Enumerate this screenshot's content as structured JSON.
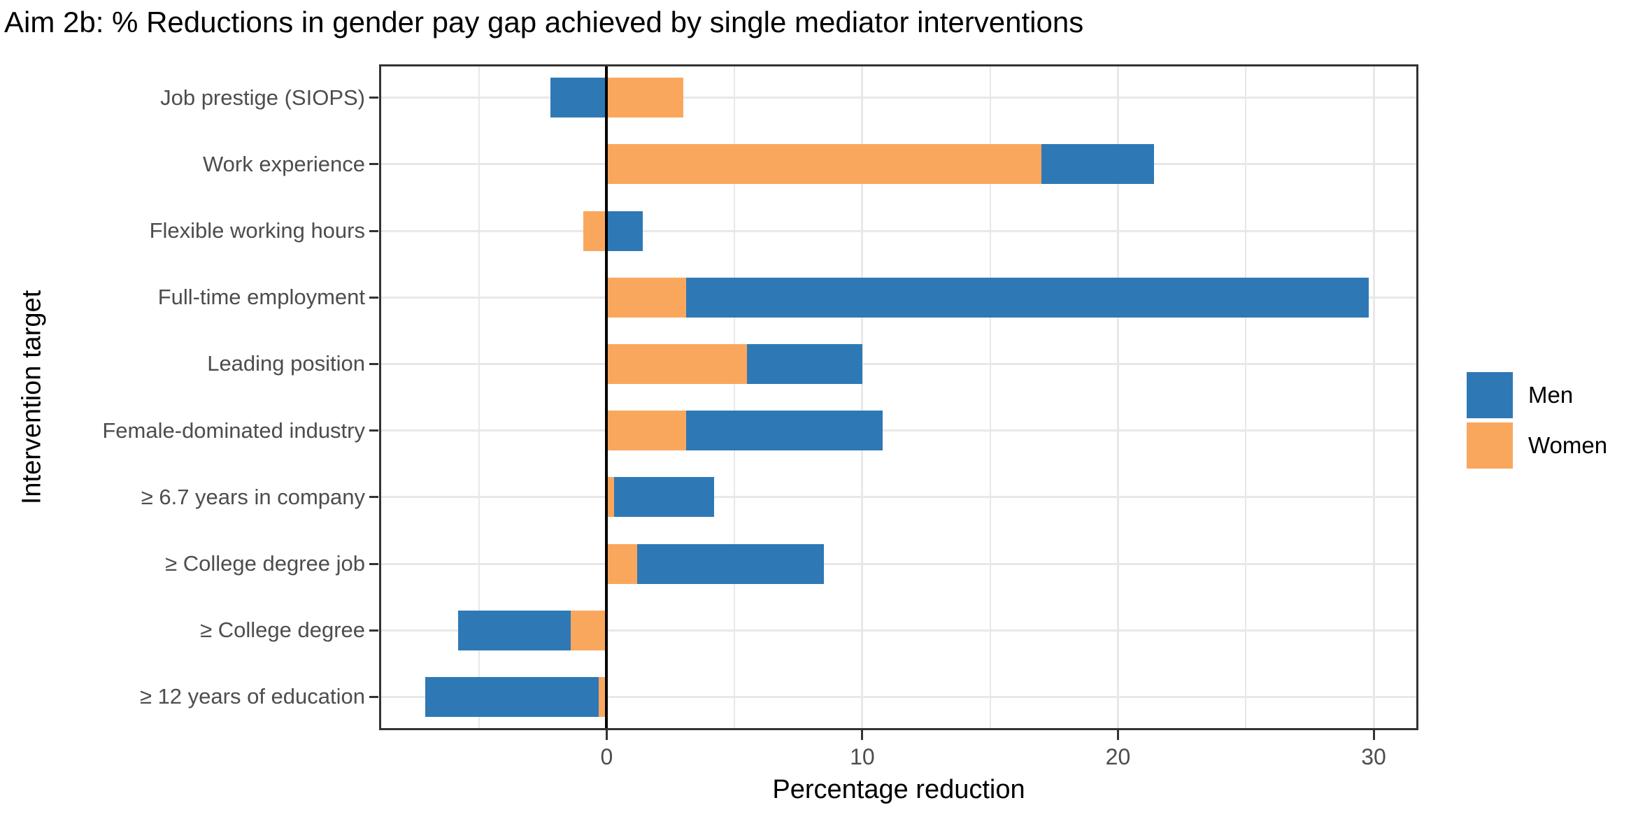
{
  "chart_data": {
    "type": "bar",
    "orientation": "horizontal",
    "stacked": true,
    "title": "Aim 2b: % Reductions in gender pay gap achieved by single mediator interventions",
    "xlabel": "Percentage reduction",
    "ylabel": "Intervention target",
    "categories": [
      "Job prestige (SIOPS)",
      "Work experience",
      "Flexible working hours",
      "Full-time employment",
      "Leading position",
      "Female-dominated industry",
      "≥ 6.7 years in company",
      "≥ College degree job",
      "≥ College degree",
      "≥ 12 years of education"
    ],
    "series": [
      {
        "name": "Men",
        "color": "#2E79B5",
        "values": [
          -2.2,
          4.4,
          1.4,
          26.7,
          4.5,
          7.7,
          3.9,
          7.3,
          -4.4,
          -6.8
        ]
      },
      {
        "name": "Women",
        "color": "#FAA75E",
        "values": [
          3.0,
          17.0,
          -0.9,
          3.1,
          5.5,
          3.1,
          0.3,
          1.2,
          -1.4,
          -0.3
        ]
      }
    ],
    "stack_order": [
      "Women",
      "Men"
    ],
    "x_ticks": [
      0,
      10,
      20,
      30
    ],
    "x_minor_ticks": [
      -5,
      5,
      15,
      25
    ],
    "xlim": [
      -8.9,
      31.75
    ],
    "zero_line": true,
    "grid": true,
    "legend_position": "right",
    "legend_items": [
      "Men",
      "Women"
    ]
  },
  "colors": {
    "grid": "#E8E8E8",
    "axis_text": "#4D4D4D",
    "panel_border": "#333333",
    "zero_line": "#000000",
    "background": "#FFFFFF"
  }
}
